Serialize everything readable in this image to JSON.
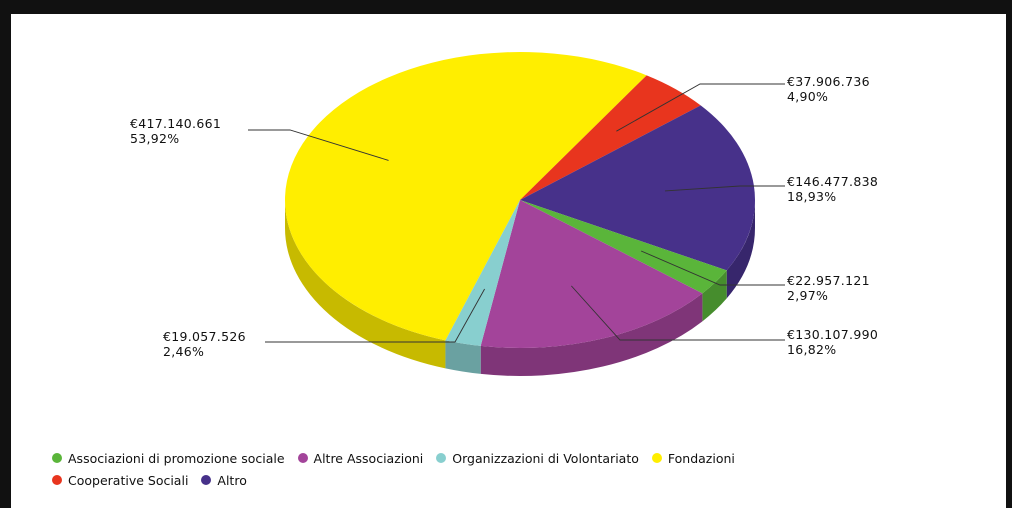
{
  "chart_data": {
    "type": "pie",
    "title": "",
    "slices": [
      {
        "name": "Fondazioni",
        "value": 417140661,
        "label": "€417.140.661",
        "percent": "53,92%",
        "color": "#ffee00"
      },
      {
        "name": "Cooperative Sociali",
        "value": 37906736,
        "label": "€37.906.736",
        "percent": "4,90%",
        "color": "#e8351e"
      },
      {
        "name": "Altro",
        "value": 146477838,
        "label": "€146.477.838",
        "percent": "18,93%",
        "color": "#47318a"
      },
      {
        "name": "Associazioni di promozione sociale",
        "value": 22957121,
        "label": "€22.957.121",
        "percent": "2,97%",
        "color": "#5ab53a"
      },
      {
        "name": "Altre Associazioni",
        "value": 130107990,
        "label": "€130.107.990",
        "percent": "16,82%",
        "color": "#a3449a"
      },
      {
        "name": "Organizzazioni di Volontariato",
        "value": 19057526,
        "label": "€19.057.526",
        "percent": "2,46%",
        "color": "#88cfcf"
      }
    ],
    "legend": {
      "placement": "bottom",
      "items": [
        {
          "label": "Associazioni di promozione sociale",
          "color": "#5ab53a"
        },
        {
          "label": "Altre Associazioni",
          "color": "#a3449a"
        },
        {
          "label": "Organizzazioni di Volontariato",
          "color": "#88cfcf"
        },
        {
          "label": "Fondazioni",
          "color": "#ffee00"
        },
        {
          "label": "Cooperative Sociali",
          "color": "#e8351e"
        },
        {
          "label": "Altro",
          "color": "#47318a"
        }
      ]
    }
  }
}
